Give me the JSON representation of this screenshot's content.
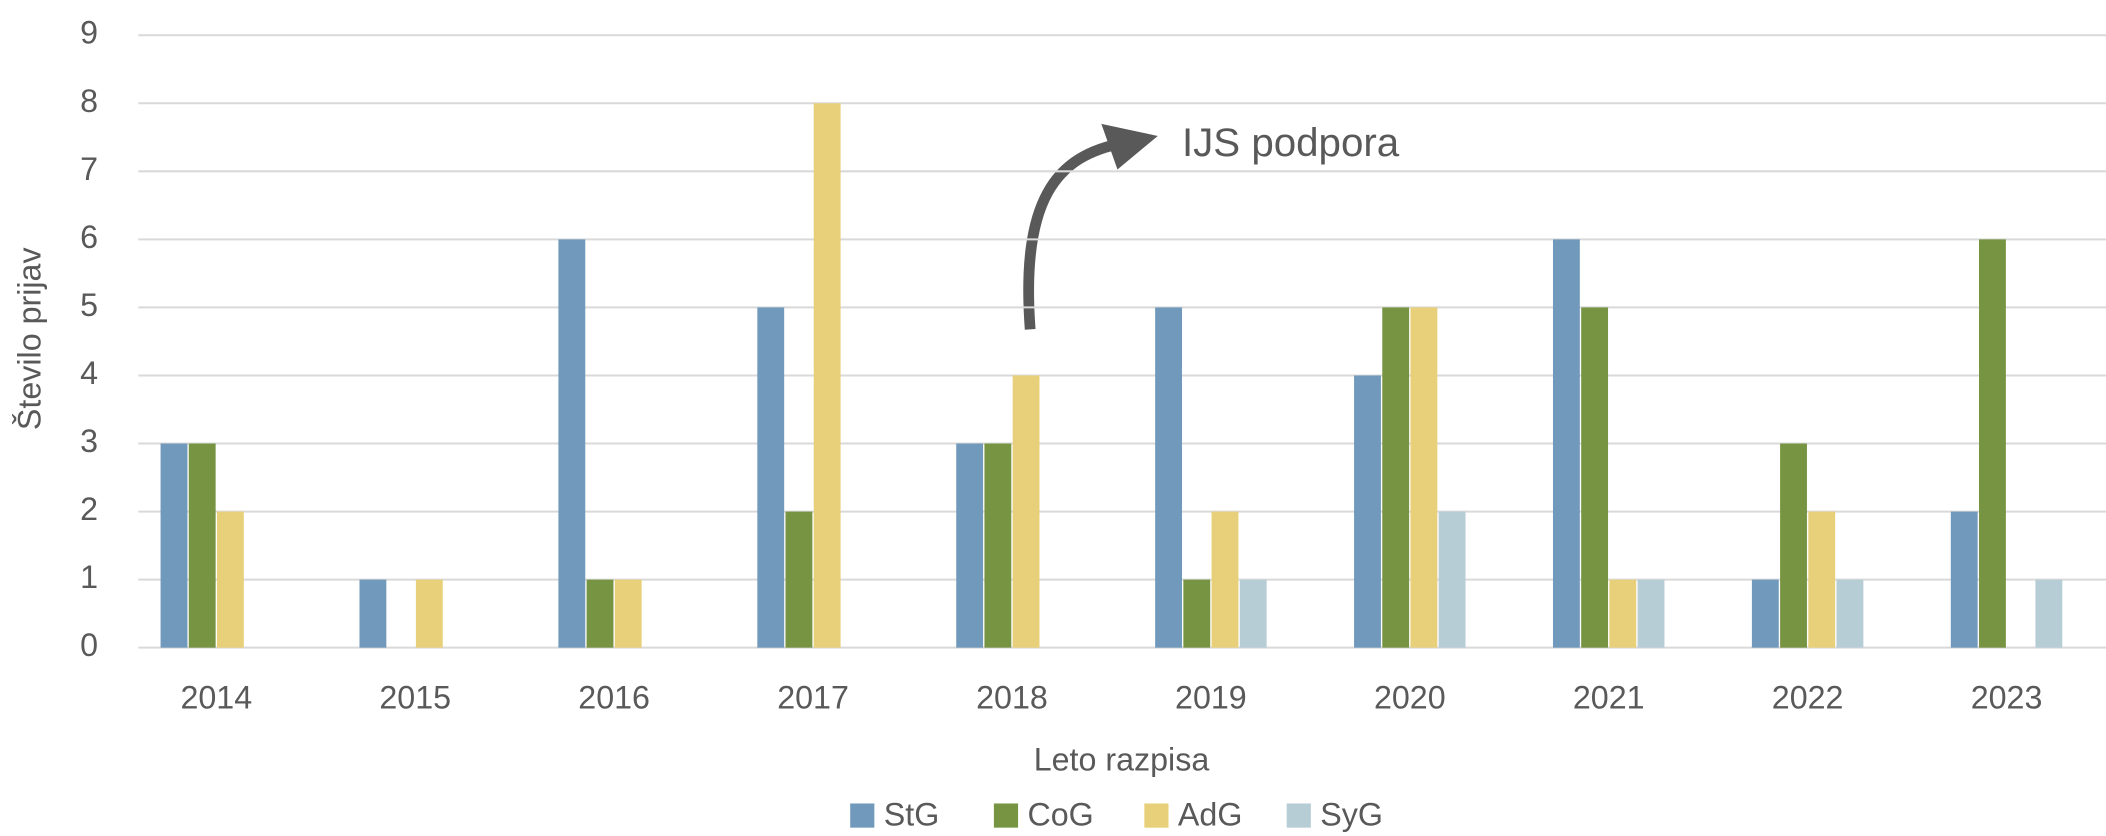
{
  "chart_data": {
    "type": "bar",
    "xlabel": "Leto razpisa",
    "ylabel": "Število prijav",
    "annotation": "IJS podpora",
    "categories": [
      "2014",
      "2015",
      "2016",
      "2017",
      "2018",
      "2019",
      "2020",
      "2021",
      "2022",
      "2023"
    ],
    "series": [
      {
        "name": "StG",
        "color": "#7199bb",
        "values": [
          3,
          1,
          6,
          5,
          3,
          5,
          4,
          6,
          1,
          2
        ]
      },
      {
        "name": "CoG",
        "color": "#779443",
        "values": [
          3,
          0,
          1,
          2,
          3,
          1,
          5,
          5,
          3,
          6
        ]
      },
      {
        "name": "AdG",
        "color": "#e8d07a",
        "values": [
          2,
          1,
          1,
          8,
          4,
          2,
          5,
          1,
          2,
          0
        ]
      },
      {
        "name": "SyG",
        "color": "#b6cdd6",
        "values": [
          0,
          0,
          0,
          0,
          0,
          1,
          2,
          1,
          1,
          1
        ]
      }
    ],
    "ylim": [
      0,
      9
    ],
    "yticks": [
      0,
      1,
      2,
      3,
      4,
      5,
      6,
      7,
      8,
      9
    ],
    "grid": true,
    "legend": "bottom"
  }
}
